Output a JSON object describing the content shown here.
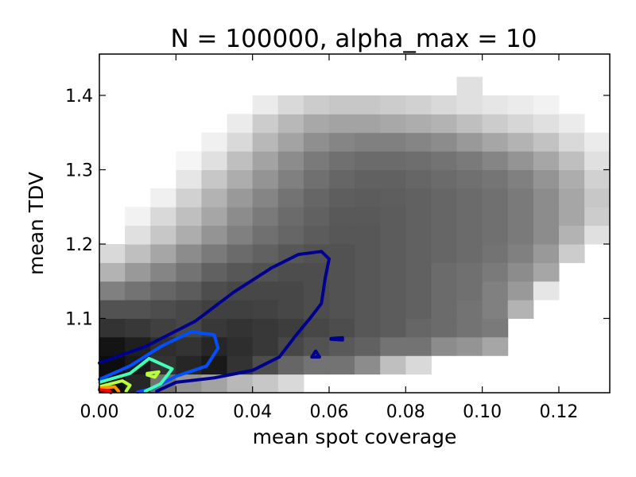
{
  "chart_data": {
    "type": "heatmap",
    "title": "N = 100000, alpha_max = 10",
    "xlabel": "mean spot coverage",
    "ylabel": "mean TDV",
    "xlim": [
      0.0,
      0.1333
    ],
    "ylim": [
      1.0,
      1.4556
    ],
    "x_ticks": [
      "0.00",
      "0.02",
      "0.04",
      "0.06",
      "0.08",
      "0.10",
      "0.12"
    ],
    "x_tick_values": [
      0.0,
      0.02,
      0.04,
      0.06,
      0.08,
      0.1,
      0.12
    ],
    "y_ticks": [
      "1.1",
      "1.2",
      "1.3",
      "1.4"
    ],
    "y_tick_values": [
      1.1,
      1.2,
      1.3,
      1.4
    ],
    "grid": false,
    "histogram": {
      "x_start": 0.0,
      "x_bin": 0.006667,
      "y_start": 1.0,
      "y_bin": 0.025,
      "description": "density 0 (white) to 1 (black), rows from y=1.000 upward",
      "rows": [
        [
          0.95,
          0.85,
          0.55,
          0.42,
          0.36,
          0.28,
          0.22,
          0.15,
          0,
          0,
          0,
          0,
          0,
          0,
          0,
          0,
          0,
          0,
          0,
          0
        ],
        [
          0.95,
          0.9,
          0.8,
          0.85,
          0.9,
          0.8,
          0.7,
          0.6,
          0.55,
          0.55,
          0.45,
          0.25,
          0.15,
          0,
          0,
          0,
          0,
          0,
          0,
          0
        ],
        [
          0.92,
          0.88,
          0.82,
          0.8,
          0.85,
          0.82,
          0.78,
          0.72,
          0.68,
          0.65,
          0.62,
          0.55,
          0.55,
          0.45,
          0.42,
          0.35,
          0,
          0,
          0,
          0
        ],
        [
          0.8,
          0.78,
          0.75,
          0.72,
          0.78,
          0.8,
          0.78,
          0.76,
          0.72,
          0.7,
          0.66,
          0.64,
          0.6,
          0.58,
          0.55,
          0.52,
          0,
          0,
          0,
          0
        ],
        [
          0.68,
          0.68,
          0.7,
          0.72,
          0.75,
          0.75,
          0.74,
          0.72,
          0.7,
          0.68,
          0.66,
          0.64,
          0.62,
          0.58,
          0.55,
          0.5,
          0.3,
          0,
          0,
          0
        ],
        [
          0.5,
          0.55,
          0.6,
          0.64,
          0.7,
          0.72,
          0.72,
          0.72,
          0.7,
          0.68,
          0.66,
          0.64,
          0.62,
          0.58,
          0.56,
          0.5,
          0.4,
          0.1,
          0,
          0
        ],
        [
          0.3,
          0.4,
          0.48,
          0.55,
          0.62,
          0.66,
          0.68,
          0.7,
          0.7,
          0.68,
          0.66,
          0.64,
          0.62,
          0.58,
          0.56,
          0.52,
          0.45,
          0.35,
          0,
          0
        ],
        [
          0.15,
          0.25,
          0.35,
          0.45,
          0.52,
          0.58,
          0.62,
          0.66,
          0.68,
          0.68,
          0.66,
          0.64,
          0.62,
          0.6,
          0.58,
          0.55,
          0.5,
          0.4,
          0.2,
          0
        ],
        [
          0,
          0.12,
          0.22,
          0.32,
          0.42,
          0.5,
          0.56,
          0.6,
          0.64,
          0.66,
          0.66,
          0.64,
          0.62,
          0.6,
          0.58,
          0.56,
          0.52,
          0.45,
          0.3,
          0.12
        ],
        [
          0,
          0.05,
          0.15,
          0.25,
          0.35,
          0.45,
          0.52,
          0.58,
          0.62,
          0.65,
          0.65,
          0.64,
          0.62,
          0.6,
          0.58,
          0.56,
          0.52,
          0.45,
          0.35,
          0.2
        ],
        [
          0,
          0,
          0.06,
          0.18,
          0.3,
          0.4,
          0.48,
          0.55,
          0.6,
          0.63,
          0.64,
          0.63,
          0.62,
          0.6,
          0.58,
          0.56,
          0.52,
          0.45,
          0.35,
          0.22
        ],
        [
          0,
          0,
          0,
          0.1,
          0.22,
          0.32,
          0.42,
          0.5,
          0.56,
          0.6,
          0.62,
          0.62,
          0.6,
          0.58,
          0.56,
          0.54,
          0.5,
          0.42,
          0.32,
          0.18
        ],
        [
          0,
          0,
          0,
          0.04,
          0.12,
          0.25,
          0.36,
          0.45,
          0.52,
          0.56,
          0.58,
          0.58,
          0.57,
          0.55,
          0.52,
          0.48,
          0.42,
          0.35,
          0.25,
          0.12
        ],
        [
          0,
          0,
          0,
          0,
          0.06,
          0.15,
          0.28,
          0.36,
          0.44,
          0.48,
          0.5,
          0.5,
          0.48,
          0.45,
          0.4,
          0.35,
          0.3,
          0.24,
          0.15,
          0.08
        ],
        [
          0,
          0,
          0,
          0,
          0,
          0.08,
          0.2,
          0.28,
          0.34,
          0.36,
          0.36,
          0.34,
          0.32,
          0.3,
          0.25,
          0.2,
          0.16,
          0.12,
          0.08,
          0
        ],
        [
          0,
          0,
          0,
          0,
          0,
          0,
          0.08,
          0.15,
          0.2,
          0.22,
          0.22,
          0.2,
          0.18,
          0.15,
          0.12,
          0.1,
          0.08,
          0.05,
          0,
          0
        ],
        [
          0,
          0,
          0,
          0,
          0,
          0,
          0,
          0,
          0,
          0,
          0,
          0,
          0,
          0,
          0.12,
          0,
          0,
          0,
          0,
          0
        ],
        [
          0,
          0,
          0,
          0,
          0,
          0,
          0,
          0,
          0,
          0,
          0,
          0,
          0,
          0,
          0,
          0,
          0,
          0,
          0,
          0
        ],
        [
          0,
          0,
          0,
          0,
          0,
          0,
          0,
          0,
          0,
          0,
          0,
          0,
          0,
          0,
          0,
          0,
          0,
          0,
          0,
          0
        ]
      ]
    },
    "contours": [
      {
        "level": 1,
        "color": "#00008f",
        "points": [
          [
            0.0,
            1.04
          ],
          [
            0.012,
            1.062
          ],
          [
            0.025,
            1.096
          ],
          [
            0.035,
            1.135
          ],
          [
            0.045,
            1.168
          ],
          [
            0.052,
            1.186
          ],
          [
            0.058,
            1.19
          ],
          [
            0.06,
            1.18
          ],
          [
            0.059,
            1.155
          ],
          [
            0.058,
            1.12
          ],
          [
            0.055,
            1.1
          ],
          [
            0.051,
            1.075
          ],
          [
            0.047,
            1.048
          ],
          [
            0.04,
            1.03
          ],
          [
            0.03,
            1.02
          ],
          [
            0.02,
            1.014
          ],
          [
            0.015,
            1.002
          ]
        ],
        "closed": false
      },
      {
        "level": 1,
        "color": "#00008f",
        "points": [
          [
            0.0555,
            1.048
          ],
          [
            0.0565,
            1.056
          ],
          [
            0.0575,
            1.048
          ]
        ],
        "closed": true
      },
      {
        "level": 1,
        "color": "#00008f",
        "points": [
          [
            0.0605,
            1.073
          ],
          [
            0.0635,
            1.074
          ],
          [
            0.0635,
            1.071
          ],
          [
            0.0605,
            1.072
          ]
        ],
        "closed": true
      },
      {
        "level": 2,
        "color": "#0050ff",
        "points": [
          [
            0.0,
            1.018
          ],
          [
            0.008,
            1.036
          ],
          [
            0.016,
            1.062
          ],
          [
            0.024,
            1.082
          ],
          [
            0.03,
            1.078
          ],
          [
            0.031,
            1.06
          ],
          [
            0.028,
            1.036
          ],
          [
            0.02,
            1.022
          ],
          [
            0.014,
            1.006
          ],
          [
            0.01,
            1.001
          ]
        ],
        "closed": false
      },
      {
        "level": 3,
        "color": "#40ffb7",
        "points": [
          [
            0.0,
            1.014
          ],
          [
            0.008,
            1.026
          ],
          [
            0.013,
            1.046
          ],
          [
            0.019,
            1.032
          ],
          [
            0.016,
            1.012
          ],
          [
            0.012,
            1.002
          ]
        ],
        "closed": false
      },
      {
        "level": 4,
        "color": "#b7ff40",
        "points": [
          [
            0.0,
            1.008
          ],
          [
            0.006,
            1.016
          ],
          [
            0.008,
            1.01
          ],
          [
            0.007,
            1.002
          ]
        ],
        "closed": false
      },
      {
        "level": 4,
        "color": "#b7ff40",
        "points": [
          [
            0.0125,
            1.026
          ],
          [
            0.0155,
            1.028
          ],
          [
            0.0145,
            1.021
          ],
          [
            0.0125,
            1.024
          ]
        ],
        "closed": true
      },
      {
        "level": 5,
        "color": "#ff9600",
        "points": [
          [
            0.0,
            1.006
          ],
          [
            0.004,
            1.008
          ],
          [
            0.005,
            1.002
          ]
        ],
        "closed": false
      },
      {
        "level": 6,
        "color": "#ff0000",
        "points": [
          [
            0.0,
            1.004
          ],
          [
            0.0025,
            1.003
          ],
          [
            0.003,
            1.0
          ]
        ],
        "closed": false
      }
    ]
  }
}
